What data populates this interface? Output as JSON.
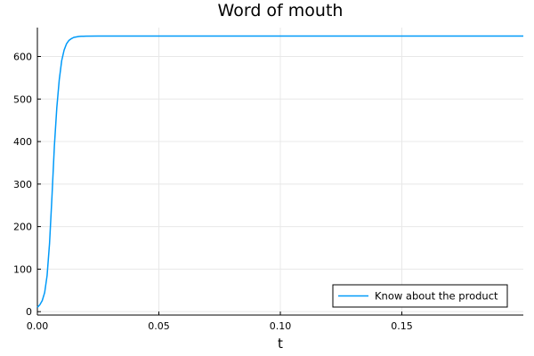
{
  "chart_data": {
    "type": "line",
    "title": "Word of mouth",
    "xlabel": "t",
    "ylabel": "",
    "xlim": [
      0.0,
      0.2
    ],
    "ylim": [
      -8,
      668
    ],
    "xticks": [
      0.0,
      0.05,
      0.1,
      0.15
    ],
    "xtick_labels": [
      "0.00",
      "0.05",
      "0.10",
      "0.15"
    ],
    "yticks": [
      0,
      100,
      200,
      300,
      400,
      500,
      600
    ],
    "ytick_labels": [
      "0",
      "100",
      "200",
      "300",
      "400",
      "500",
      "600"
    ],
    "grid": true,
    "legend_position": "bottom-right",
    "series": [
      {
        "name": "Know about the product",
        "color": "#009af9",
        "x": [
          0.0,
          0.001,
          0.002,
          0.003,
          0.004,
          0.005,
          0.006,
          0.007,
          0.008,
          0.009,
          0.01,
          0.011,
          0.012,
          0.013,
          0.014,
          0.015,
          0.016,
          0.017,
          0.018,
          0.019,
          0.02,
          0.025,
          0.03,
          0.05,
          0.1,
          0.15,
          0.2
        ],
        "y": [
          10,
          16,
          26,
          45,
          85,
          160,
          270,
          390,
          480,
          545,
          590,
          615,
          630,
          638,
          642,
          645,
          646,
          647,
          647.5,
          647.7,
          647.8,
          648,
          648,
          648,
          648,
          648,
          648
        ]
      }
    ]
  }
}
